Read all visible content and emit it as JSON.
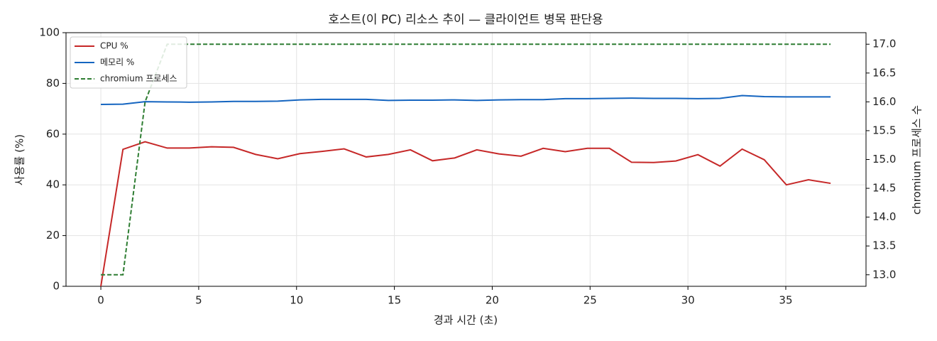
{
  "chart_data": {
    "type": "line",
    "title": "호스트(이 PC) 리소스 추이 — 클라이언트 병목 판단용",
    "x_label": "경과 시간 (초)",
    "y_label": "사용률 (%)",
    "y2_label": "chromium 프로세스 수",
    "x": [
      0,
      1.13,
      2.26,
      3.39,
      4.52,
      5.65,
      6.78,
      7.91,
      9.04,
      10.17,
      11.3,
      12.43,
      13.56,
      14.69,
      15.82,
      16.95,
      18.08,
      19.21,
      20.34,
      21.47,
      22.6,
      23.73,
      24.86,
      25.99,
      27.12,
      28.25,
      29.38,
      30.51,
      31.64,
      32.77,
      33.9,
      35.03,
      36.16,
      37.29
    ],
    "series": [
      {
        "name": "CPU %",
        "color": "#c62828",
        "linestyle": "solid",
        "values": [
          0,
          54,
          57,
          54.5,
          54.5,
          55,
          54.8,
          52,
          50.3,
          52.3,
          53.2,
          54.2,
          51,
          52,
          53.8,
          49.5,
          50.6,
          53.8,
          52.2,
          51.3,
          54.4,
          53.1,
          54.4,
          54.4,
          48.9,
          48.8,
          49.4,
          51.9,
          47.4,
          54.1,
          49.9,
          40,
          42,
          40.6
        ]
      },
      {
        "name": "메모리 %",
        "color": "#1565c0",
        "linestyle": "solid",
        "values": [
          71.7,
          71.8,
          72.8,
          72.7,
          72.6,
          72.7,
          72.9,
          72.9,
          73.0,
          73.5,
          73.7,
          73.7,
          73.7,
          73.3,
          73.4,
          73.4,
          73.5,
          73.3,
          73.5,
          73.6,
          73.6,
          74.0,
          74.0,
          74.1,
          74.2,
          74.1,
          74.1,
          74.0,
          74.1,
          75.2,
          74.8,
          74.7,
          74.7,
          74.7
        ]
      },
      {
        "name": "chromium 프로세스",
        "color": "#2e7d32",
        "linestyle": "dashed",
        "axis": "y2",
        "values": [
          13,
          13,
          16,
          17,
          17,
          17,
          17,
          17,
          17,
          17,
          17,
          17,
          17,
          17,
          17,
          17,
          17,
          17,
          17,
          17,
          17,
          17,
          17,
          17,
          17,
          17,
          17,
          17,
          17,
          17,
          17,
          17,
          17,
          17
        ]
      }
    ],
    "xlim": [
      -1.78,
      39.1
    ],
    "xticks": [
      0,
      5,
      10,
      15,
      20,
      25,
      30,
      35
    ],
    "ylim": [
      0,
      100
    ],
    "yticks": [
      0,
      20,
      40,
      60,
      80,
      100
    ],
    "y2lim": [
      12.8,
      17.2
    ],
    "y2ticks": [
      {
        "value": 13,
        "label": "13.0"
      },
      {
        "value": 13.5,
        "label": "13.5"
      },
      {
        "value": 14,
        "label": "14.0"
      },
      {
        "value": 14.5,
        "label": "14.5"
      },
      {
        "value": 15,
        "label": "15.0"
      },
      {
        "value": 15.5,
        "label": "15.5"
      },
      {
        "value": 16,
        "label": "16.0"
      },
      {
        "value": 16.5,
        "label": "16.5"
      },
      {
        "value": 17,
        "label": "17.0"
      }
    ],
    "grid": true,
    "legend": "upper-left"
  }
}
